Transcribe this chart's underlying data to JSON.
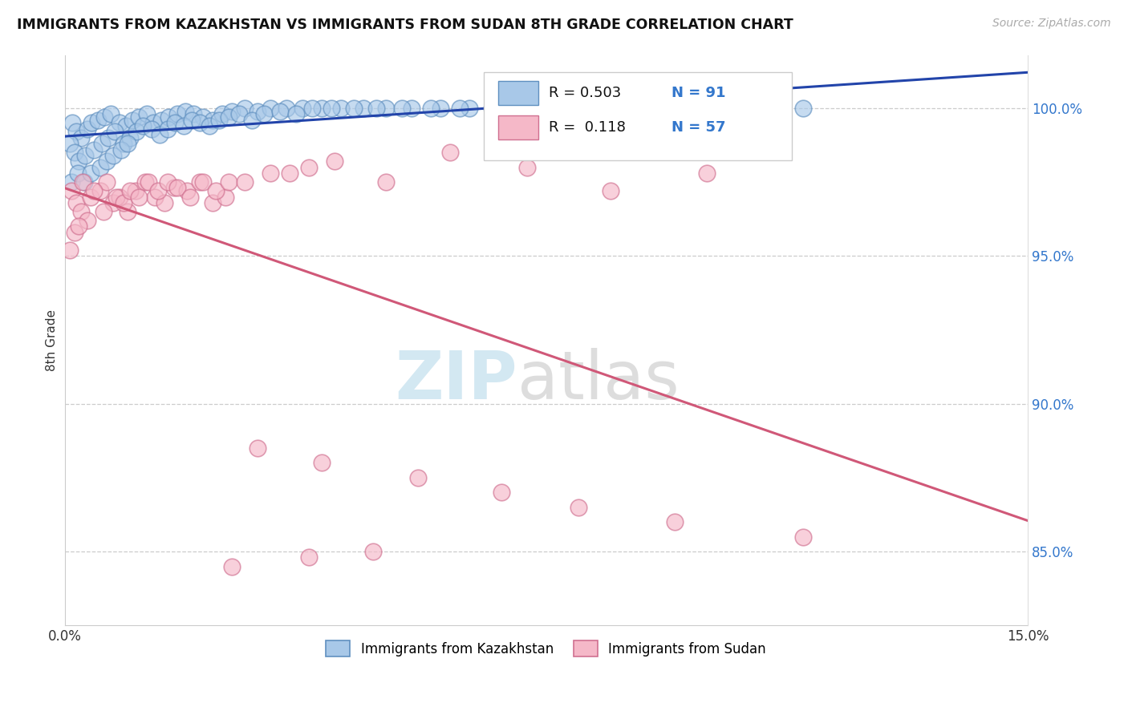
{
  "title": "IMMIGRANTS FROM KAZAKHSTAN VS IMMIGRANTS FROM SUDAN 8TH GRADE CORRELATION CHART",
  "source": "Source: ZipAtlas.com",
  "ylabel": "8th Grade",
  "xmin": 0.0,
  "xmax": 15.0,
  "ymin": 82.5,
  "ymax": 101.8,
  "ytick_positions": [
    85.0,
    90.0,
    95.0,
    100.0
  ],
  "ytick_labels": [
    "85.0%",
    "90.0%",
    "95.0%",
    "100.0%"
  ],
  "legend_r1_label": "R = 0.503",
  "legend_n1_label": "N = 91",
  "legend_r2_label": "R =  0.118",
  "legend_n2_label": "N = 57",
  "blue_fill": "#a8c8e8",
  "blue_edge": "#6090c0",
  "blue_line": "#2244aa",
  "pink_fill": "#f5b8c8",
  "pink_edge": "#d07090",
  "pink_line": "#d05878",
  "watermark_zip_color": "#cce4f0",
  "watermark_atlas_color": "#d8d8d8",
  "kaz_x": [
    0.12,
    0.18,
    0.25,
    0.35,
    0.42,
    0.52,
    0.62,
    0.72,
    0.85,
    0.95,
    1.05,
    1.15,
    1.28,
    1.38,
    1.5,
    1.62,
    1.75,
    1.88,
    2.0,
    2.15,
    2.3,
    2.45,
    2.6,
    2.8,
    3.0,
    3.2,
    3.45,
    3.7,
    4.0,
    4.3,
    4.65,
    5.0,
    5.4,
    5.85,
    6.3,
    6.8,
    7.4,
    8.0,
    8.7,
    9.5,
    10.4,
    0.08,
    0.15,
    0.22,
    0.32,
    0.45,
    0.58,
    0.68,
    0.78,
    0.92,
    1.02,
    1.12,
    1.22,
    1.35,
    1.48,
    1.6,
    1.72,
    1.85,
    1.98,
    2.1,
    2.25,
    2.4,
    2.55,
    2.72,
    2.92,
    3.1,
    3.35,
    3.6,
    3.85,
    4.15,
    4.5,
    4.85,
    5.25,
    5.7,
    6.15,
    6.65,
    7.2,
    7.8,
    8.5,
    9.2,
    10.0,
    11.5,
    0.1,
    0.2,
    0.3,
    0.4,
    0.55,
    0.65,
    0.75,
    0.88,
    0.98
  ],
  "kaz_y": [
    99.5,
    99.2,
    99.0,
    99.3,
    99.5,
    99.6,
    99.7,
    99.8,
    99.5,
    99.4,
    99.6,
    99.7,
    99.8,
    99.5,
    99.6,
    99.7,
    99.8,
    99.9,
    99.8,
    99.7,
    99.6,
    99.8,
    99.9,
    100.0,
    99.9,
    100.0,
    100.0,
    100.0,
    100.0,
    100.0,
    100.0,
    100.0,
    100.0,
    100.0,
    100.0,
    100.0,
    100.0,
    100.0,
    100.0,
    100.0,
    100.0,
    98.8,
    98.5,
    98.2,
    98.4,
    98.6,
    98.8,
    99.0,
    99.2,
    98.8,
    99.0,
    99.2,
    99.4,
    99.3,
    99.1,
    99.3,
    99.5,
    99.4,
    99.6,
    99.5,
    99.4,
    99.6,
    99.7,
    99.8,
    99.6,
    99.8,
    99.9,
    99.8,
    100.0,
    100.0,
    100.0,
    100.0,
    100.0,
    100.0,
    100.0,
    100.0,
    100.0,
    100.0,
    100.0,
    100.0,
    100.0,
    100.0,
    97.5,
    97.8,
    97.5,
    97.8,
    98.0,
    98.2,
    98.4,
    98.6,
    98.8
  ],
  "sud_x": [
    0.1,
    0.18,
    0.28,
    0.15,
    0.25,
    0.4,
    0.35,
    0.55,
    0.65,
    0.75,
    0.85,
    0.98,
    1.1,
    1.25,
    1.4,
    1.55,
    1.7,
    1.9,
    2.1,
    2.3,
    2.5,
    0.08,
    0.22,
    0.45,
    0.6,
    0.8,
    0.92,
    1.02,
    1.15,
    1.3,
    1.45,
    1.6,
    1.75,
    1.95,
    2.15,
    2.35,
    2.55,
    3.2,
    3.8,
    2.8,
    3.5,
    4.2,
    5.0,
    6.0,
    7.2,
    8.5,
    10.0,
    3.0,
    4.0,
    5.5,
    6.8,
    8.0,
    9.5,
    11.5,
    2.6,
    3.8,
    4.8
  ],
  "sud_y": [
    97.2,
    96.8,
    97.5,
    95.8,
    96.5,
    97.0,
    96.2,
    97.2,
    97.5,
    96.8,
    97.0,
    96.5,
    97.2,
    97.5,
    97.0,
    96.8,
    97.3,
    97.2,
    97.5,
    96.8,
    97.0,
    95.2,
    96.0,
    97.2,
    96.5,
    97.0,
    96.8,
    97.2,
    97.0,
    97.5,
    97.2,
    97.5,
    97.3,
    97.0,
    97.5,
    97.2,
    97.5,
    97.8,
    98.0,
    97.5,
    97.8,
    98.2,
    97.5,
    98.5,
    98.0,
    97.2,
    97.8,
    88.5,
    88.0,
    87.5,
    87.0,
    86.5,
    86.0,
    85.5,
    84.5,
    84.8,
    85.0
  ]
}
